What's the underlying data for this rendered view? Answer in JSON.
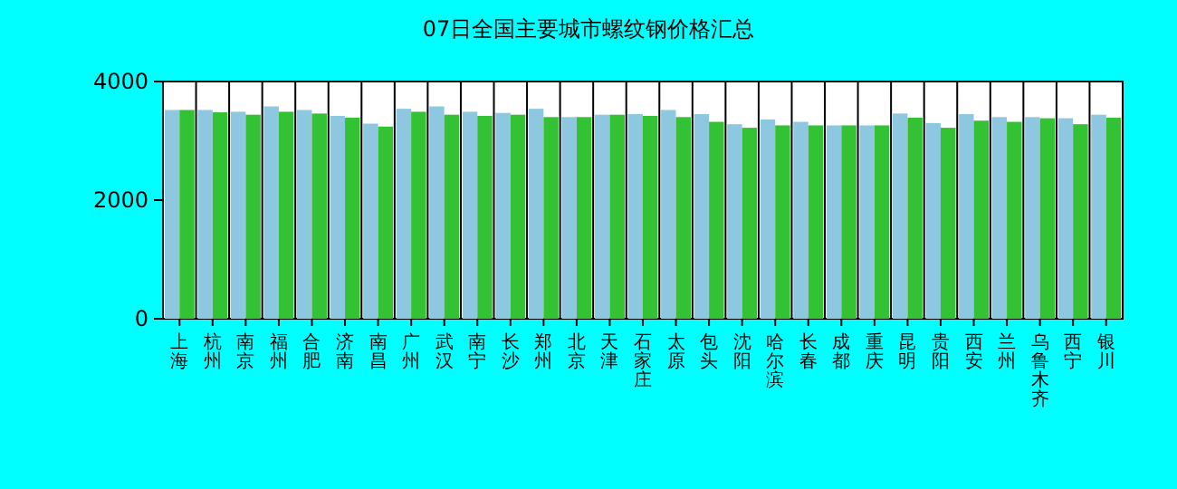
{
  "chart_data": {
    "type": "bar",
    "title": "07日全国主要城市螺纹钢价格汇总",
    "categories": [
      "上海",
      "杭州",
      "南京",
      "福州",
      "合肥",
      "济南",
      "南昌",
      "广州",
      "武汉",
      "南宁",
      "长沙",
      "郑州",
      "北京",
      "天津",
      "石家庄",
      "太原",
      "包头",
      "沈阳",
      "哈尔滨",
      "长春",
      "成都",
      "重庆",
      "昆明",
      "贵阳",
      "西安",
      "兰州",
      "乌鲁木齐",
      "西宁",
      "银川"
    ],
    "series": [
      {
        "color": "#8ec8e0",
        "values": [
          3520,
          3520,
          3490,
          3580,
          3520,
          3420,
          3290,
          3540,
          3580,
          3490,
          3470,
          3540,
          3400,
          3440,
          3450,
          3520,
          3450,
          3280,
          3360,
          3320,
          3260,
          3260,
          3460,
          3300,
          3450,
          3400,
          3400,
          3380,
          3440
        ]
      },
      {
        "color": "#33c233",
        "values": [
          3520,
          3480,
          3440,
          3490,
          3460,
          3390,
          3240,
          3490,
          3440,
          3420,
          3440,
          3400,
          3400,
          3440,
          3420,
          3400,
          3320,
          3220,
          3260,
          3260,
          3260,
          3260,
          3390,
          3220,
          3340,
          3320,
          3380,
          3280,
          3390
        ]
      }
    ],
    "ylim": [
      0,
      4000
    ],
    "yticks": [
      0,
      2000,
      4000
    ],
    "grid": "x"
  }
}
